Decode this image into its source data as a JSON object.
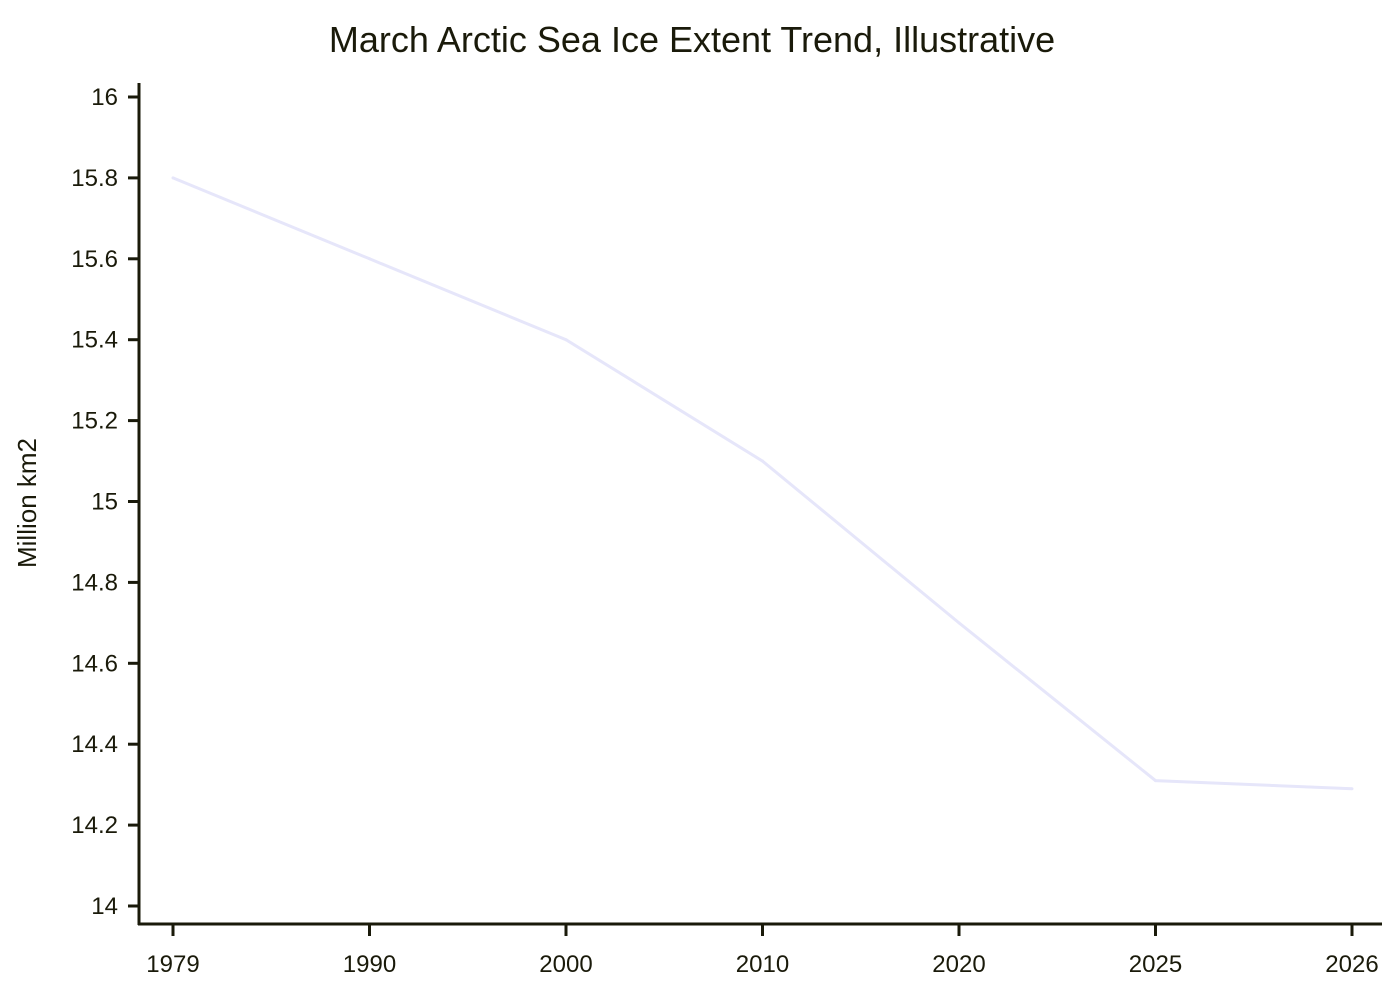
{
  "chart_data": {
    "type": "line",
    "title": "March Arctic Sea Ice Extent Trend, Illustrative",
    "xlabel": "",
    "ylabel": "Million km2",
    "categories": [
      "1979",
      "1990",
      "2000",
      "2010",
      "2020",
      "2025",
      "2026"
    ],
    "values": [
      15.8,
      15.6,
      15.4,
      15.1,
      14.7,
      14.31,
      14.29
    ],
    "ylim": [
      14,
      16
    ],
    "yticks": [
      "14",
      "14.2",
      "14.4",
      "14.6",
      "14.8",
      "15",
      "15.2",
      "15.4",
      "15.6",
      "15.8",
      "16"
    ],
    "grid": false,
    "line_color": "#e6e6fa"
  }
}
